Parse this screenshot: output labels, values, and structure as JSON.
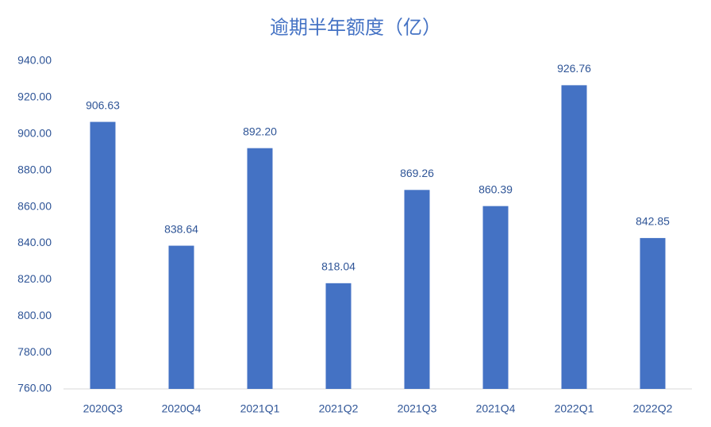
{
  "chart_data": {
    "type": "bar",
    "title": "逾期半年额度（亿）",
    "categories": [
      "2020Q3",
      "2020Q4",
      "2021Q1",
      "2021Q2",
      "2021Q3",
      "2021Q4",
      "2022Q1",
      "2022Q2"
    ],
    "values": [
      906.63,
      838.64,
      892.2,
      818.04,
      869.26,
      860.39,
      926.76,
      842.85
    ],
    "value_labels": [
      "906.63",
      "838.64",
      "892.20",
      "818.04",
      "869.26",
      "860.39",
      "926.76",
      "842.85"
    ],
    "color": "#4472c4",
    "ylim": [
      760,
      940
    ],
    "yticks": [
      {
        "value": 760,
        "label": "760.00"
      },
      {
        "value": 780,
        "label": "780.00"
      },
      {
        "value": 800,
        "label": "800.00"
      },
      {
        "value": 820,
        "label": "820.00"
      },
      {
        "value": 840,
        "label": "840.00"
      },
      {
        "value": 860,
        "label": "860.00"
      },
      {
        "value": 880,
        "label": "880.00"
      },
      {
        "value": 900,
        "label": "900.00"
      },
      {
        "value": 920,
        "label": "920.00"
      },
      {
        "value": 940,
        "label": "940.00"
      }
    ],
    "grid": false
  }
}
